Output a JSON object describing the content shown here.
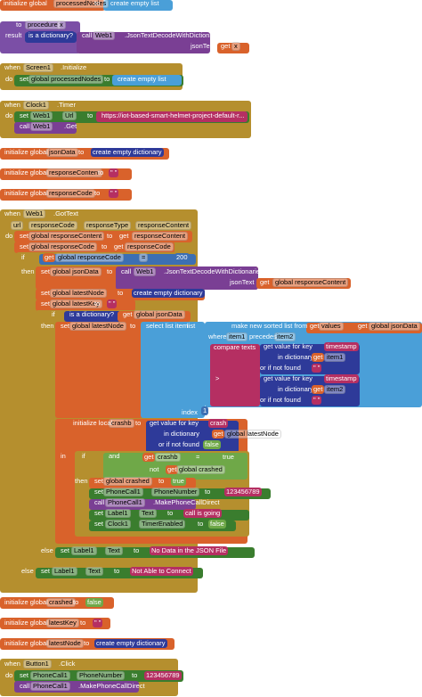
{
  "blocks": [
    {
      "texts": [
        "initialize global",
        "processedNodes",
        "to",
        "create empty list"
      ]
    },
    {
      "texts": [
        "to",
        "procedure",
        "x",
        "result",
        "is a dictionary?",
        "call",
        "Web1",
        ".JsonTextDecodeWithDictionaries",
        "jsonText",
        "get",
        "x"
      ]
    },
    {
      "texts": [
        "when",
        "Screen1",
        ".Initialize",
        "do",
        "set",
        "global processedNodes",
        "to",
        "create empty list"
      ]
    },
    {
      "texts": [
        "when",
        "Clock1",
        ".Timer",
        "do",
        "set",
        "Web1",
        "Url",
        "to",
        "https://iot-based-smart-helmet-project-default-r...",
        "call",
        "Web1",
        ".Get"
      ]
    },
    {
      "texts": [
        "initialize global",
        "jsonData",
        "to",
        "create empty dictionary"
      ]
    },
    {
      "texts": [
        "initialize global",
        "responseContent",
        "to",
        "\" \""
      ]
    },
    {
      "texts": [
        "initialize global",
        "responseCode",
        "to",
        "\" \""
      ]
    },
    {
      "texts": [
        "when",
        "Web1",
        ".GotText",
        "url",
        "responseCode",
        "responseType",
        "responseContent",
        "do",
        "set",
        "global responseContent",
        "to",
        "get",
        "responseContent",
        "set",
        "global responseCode",
        "to",
        "get",
        "responseCode",
        "if",
        "get",
        "global responseCode",
        "=",
        "200",
        "then",
        "set",
        "global jsonData",
        "to",
        "call",
        "Web1",
        ".JsonTextDecodeWithDictionaries",
        "jsonText",
        "get",
        "global responseContent",
        "set",
        "global latestNode",
        "to",
        "create empty dictionary",
        "set",
        "global latestKey",
        "to",
        "\" \"",
        "if",
        "is a dictionary?",
        "get",
        "global jsonData",
        "then",
        "set",
        "global latestNode",
        "to",
        "select list item",
        "list",
        "make new sorted list from",
        "get",
        "values",
        "get",
        "global jsonData",
        "where",
        "item1",
        "precedes",
        "item2",
        "compare texts",
        "get value for key",
        "timestamp",
        "in dictionary",
        "get",
        "item1",
        "or if not found",
        "\" \"",
        ">",
        "get value for key",
        "timestamp",
        "in dictionary",
        "get",
        "item2",
        "or if not found",
        "\" \"",
        "index",
        "1",
        "initialize local",
        "crashb",
        "to",
        "get value for key",
        "crash",
        "in dictionary",
        "get",
        "global latestNode",
        "or if not found",
        "false",
        "in",
        "if",
        "and",
        "get",
        "crashb",
        "=",
        "true",
        "not",
        "get",
        "global crashed",
        "then",
        "set",
        "global crashed",
        "to",
        "true",
        "set",
        "PhoneCall1",
        "PhoneNumber",
        "to",
        "123456789",
        "call",
        "PhoneCall1",
        ".MakePhoneCallDirect",
        "set",
        "Label1",
        "Text",
        "to",
        "call is going",
        "set",
        "Clock1",
        "TimerEnabled",
        "to",
        "false",
        "else",
        "set",
        "Label1",
        "Text",
        "to",
        "No Data in the JSON File",
        "else",
        "set",
        "Label1",
        "Text",
        "to",
        "Not Able to Connect"
      ]
    },
    {
      "texts": [
        "initialize global",
        "crashed",
        "to",
        "false"
      ]
    },
    {
      "texts": [
        "initialize global",
        "latestKey",
        "to",
        "\" \""
      ]
    },
    {
      "texts": [
        "initialize global",
        "latestNode",
        "to",
        "create empty dictionary"
      ]
    },
    {
      "texts": [
        "when",
        "Button1",
        ".Click",
        "do",
        "set",
        "PhoneCall1",
        "PhoneNumber",
        "to",
        "123456789",
        "call",
        "PhoneCall1",
        ".MakePhoneCallDirect"
      ]
    }
  ]
}
